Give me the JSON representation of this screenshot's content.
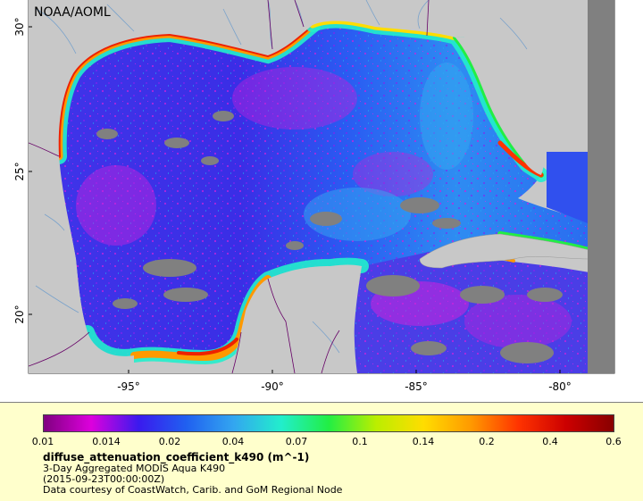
{
  "credit_label": "NOAA/AOML",
  "map": {
    "lat_ticks": [
      "30°",
      "25°",
      "20°"
    ],
    "lon_ticks": [
      "-95°",
      "-90°",
      "-85°",
      "-80°"
    ]
  },
  "legend": {
    "color_ticks": [
      "0.01",
      "0.014",
      "0.02",
      "0.04",
      "0.07",
      "0.1",
      "0.14",
      "0.2",
      "0.4",
      "0.6"
    ],
    "variable": "diffuse_attenuation_coefficient_k490 (m^-1)",
    "dataset": "3-Day Aggregated MODIS Aqua K490",
    "timestamp": "(2015-09-23T00:00:00Z)",
    "credit": "Data courtesy of CoastWatch, Carib. and GoM Regional Node"
  },
  "colors": {
    "land": "#c8c8c8",
    "nodata": "#808080",
    "rivers": "#6699cc",
    "borders": "#660066",
    "colorbar": [
      "#800080",
      "#dd00dd",
      "#3a1aee",
      "#2060f0",
      "#33a6f0",
      "#22eecc",
      "#22ee44",
      "#bbee00",
      "#ffdd00",
      "#ff9900",
      "#ff3300",
      "#cc0000",
      "#880000"
    ]
  }
}
